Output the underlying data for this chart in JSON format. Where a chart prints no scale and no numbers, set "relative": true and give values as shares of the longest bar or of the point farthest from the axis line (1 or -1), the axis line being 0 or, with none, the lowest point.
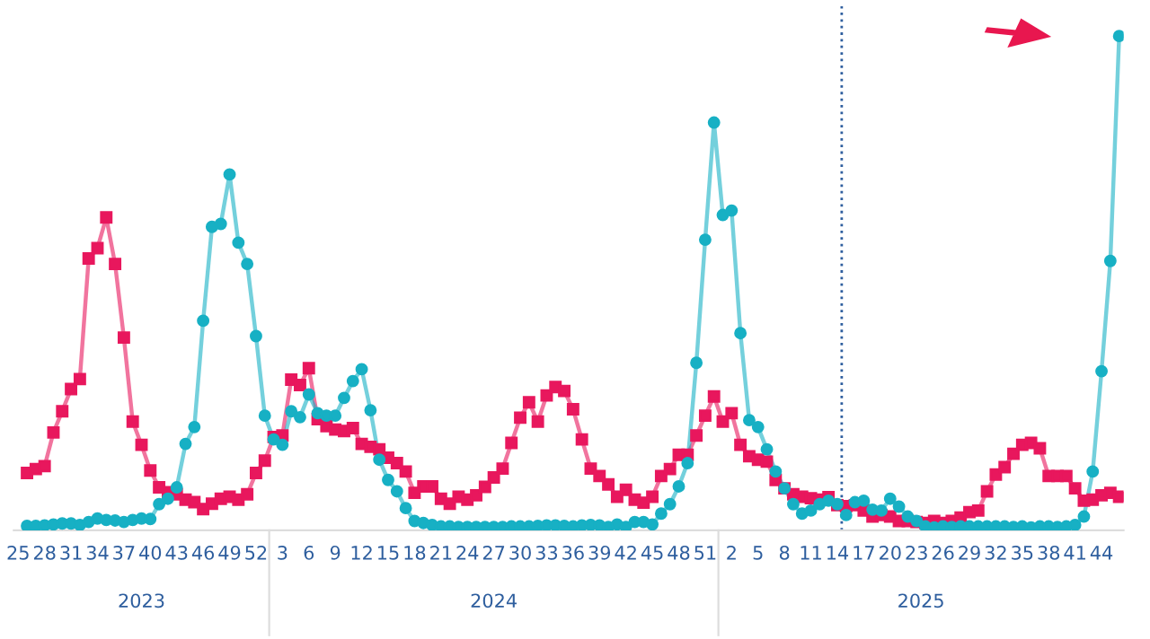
{
  "chart_data": {
    "type": "line",
    "relative": true,
    "categories": [
      "25",
      null,
      null,
      "28",
      null,
      null,
      "31",
      null,
      null,
      "34",
      null,
      null,
      "37",
      null,
      null,
      "40",
      null,
      null,
      "43",
      null,
      null,
      "46",
      null,
      null,
      "49",
      null,
      null,
      "52",
      null,
      null,
      "3",
      null,
      null,
      "6",
      null,
      null,
      "9",
      null,
      null,
      "12",
      null,
      null,
      "15",
      null,
      null,
      "18",
      null,
      null,
      "21",
      null,
      null,
      "24",
      null,
      null,
      "27",
      null,
      null,
      "30",
      null,
      null,
      "33",
      null,
      null,
      "36",
      null,
      null,
      "39",
      null,
      null,
      "42",
      null,
      null,
      "45",
      null,
      null,
      "48",
      null,
      null,
      "51",
      null,
      null,
      "2",
      null,
      null,
      "5",
      null,
      null,
      "8",
      null,
      null,
      "11",
      null,
      null,
      "14",
      null,
      null,
      "17",
      null,
      null,
      "20",
      null,
      null,
      "23",
      null,
      null,
      "26",
      null,
      null,
      "29",
      null,
      null,
      "32",
      null,
      null,
      "35",
      null,
      null,
      "38",
      null,
      null,
      "41",
      null,
      null,
      "44",
      null,
      null
    ],
    "series": [
      {
        "color": "#e8175d",
        "marker": "square",
        "values": [
          null,
          0.116,
          0.124,
          0.13,
          0.198,
          0.241,
          0.286,
          0.306,
          0.55,
          0.571,
          0.633,
          0.539,
          0.39,
          0.22,
          0.173,
          0.121,
          0.087,
          0.077,
          0.073,
          0.062,
          0.057,
          0.043,
          0.054,
          0.064,
          0.068,
          0.062,
          0.073,
          0.116,
          0.141,
          0.189,
          0.192,
          0.305,
          0.294,
          0.328,
          0.225,
          0.211,
          0.204,
          0.201,
          0.207,
          0.175,
          0.169,
          0.164,
          0.147,
          0.136,
          0.119,
          0.076,
          0.089,
          0.089,
          0.064,
          0.054,
          0.068,
          0.062,
          0.071,
          0.088,
          0.107,
          0.125,
          0.177,
          0.228,
          0.259,
          0.22,
          0.273,
          0.29,
          0.282,
          0.245,
          0.184,
          0.125,
          0.11,
          0.093,
          0.068,
          0.082,
          0.062,
          0.056,
          0.068,
          0.11,
          0.124,
          0.153,
          0.153,
          0.192,
          0.232,
          0.271,
          0.22,
          0.237,
          0.173,
          0.15,
          0.143,
          0.139,
          0.102,
          0.085,
          0.073,
          0.068,
          0.065,
          0.062,
          0.067,
          0.051,
          0.049,
          0.051,
          0.04,
          0.028,
          0.031,
          0.028,
          0.019,
          0.019,
          0.017,
          0.015,
          0.019,
          0.015,
          0.019,
          0.026,
          0.037,
          0.04,
          0.079,
          0.113,
          0.128,
          0.155,
          0.173,
          0.177,
          0.166,
          0.11,
          0.11,
          0.11,
          0.085,
          0.06,
          0.062,
          0.071,
          0.076,
          0.068
        ]
      },
      {
        "color": "#17b0c4",
        "marker": "circle",
        "values": [
          null,
          0.009,
          0.009,
          0.01,
          0.012,
          0.014,
          0.014,
          0.011,
          0.017,
          0.024,
          0.021,
          0.02,
          0.017,
          0.021,
          0.024,
          0.023,
          0.053,
          0.064,
          0.087,
          0.175,
          0.209,
          0.424,
          0.614,
          0.62,
          0.72,
          0.582,
          0.539,
          0.393,
          0.232,
          0.184,
          0.173,
          0.241,
          0.229,
          0.275,
          0.237,
          0.232,
          0.232,
          0.268,
          0.302,
          0.326,
          0.243,
          0.143,
          0.102,
          0.079,
          0.045,
          0.019,
          0.015,
          0.011,
          0.008,
          0.008,
          0.007,
          0.007,
          0.007,
          0.007,
          0.007,
          0.007,
          0.008,
          0.008,
          0.008,
          0.009,
          0.01,
          0.01,
          0.009,
          0.008,
          0.01,
          0.011,
          0.01,
          0.007,
          0.012,
          0.007,
          0.017,
          0.017,
          0.012,
          0.034,
          0.053,
          0.089,
          0.136,
          0.339,
          0.588,
          0.825,
          0.638,
          0.647,
          0.399,
          0.223,
          0.209,
          0.164,
          0.119,
          0.085,
          0.053,
          0.034,
          0.04,
          0.053,
          0.06,
          0.053,
          0.031,
          0.057,
          0.06,
          0.042,
          0.04,
          0.064,
          0.048,
          0.028,
          0.019,
          0.008,
          0.006,
          0.008,
          0.007,
          0.008,
          0.008,
          0.008,
          0.008,
          0.008,
          0.008,
          0.007,
          0.008,
          0.006,
          0.008,
          0.008,
          0.007,
          0.008,
          0.011,
          0.028,
          0.119,
          0.322,
          0.545,
          1
        ]
      }
    ],
    "ref_lines": [
      {
        "axis": "x",
        "value": "14",
        "color": "#2e5e9e",
        "line_style": "dotted"
      }
    ],
    "annotations": [
      "2023",
      "2024",
      "2025"
    ]
  }
}
